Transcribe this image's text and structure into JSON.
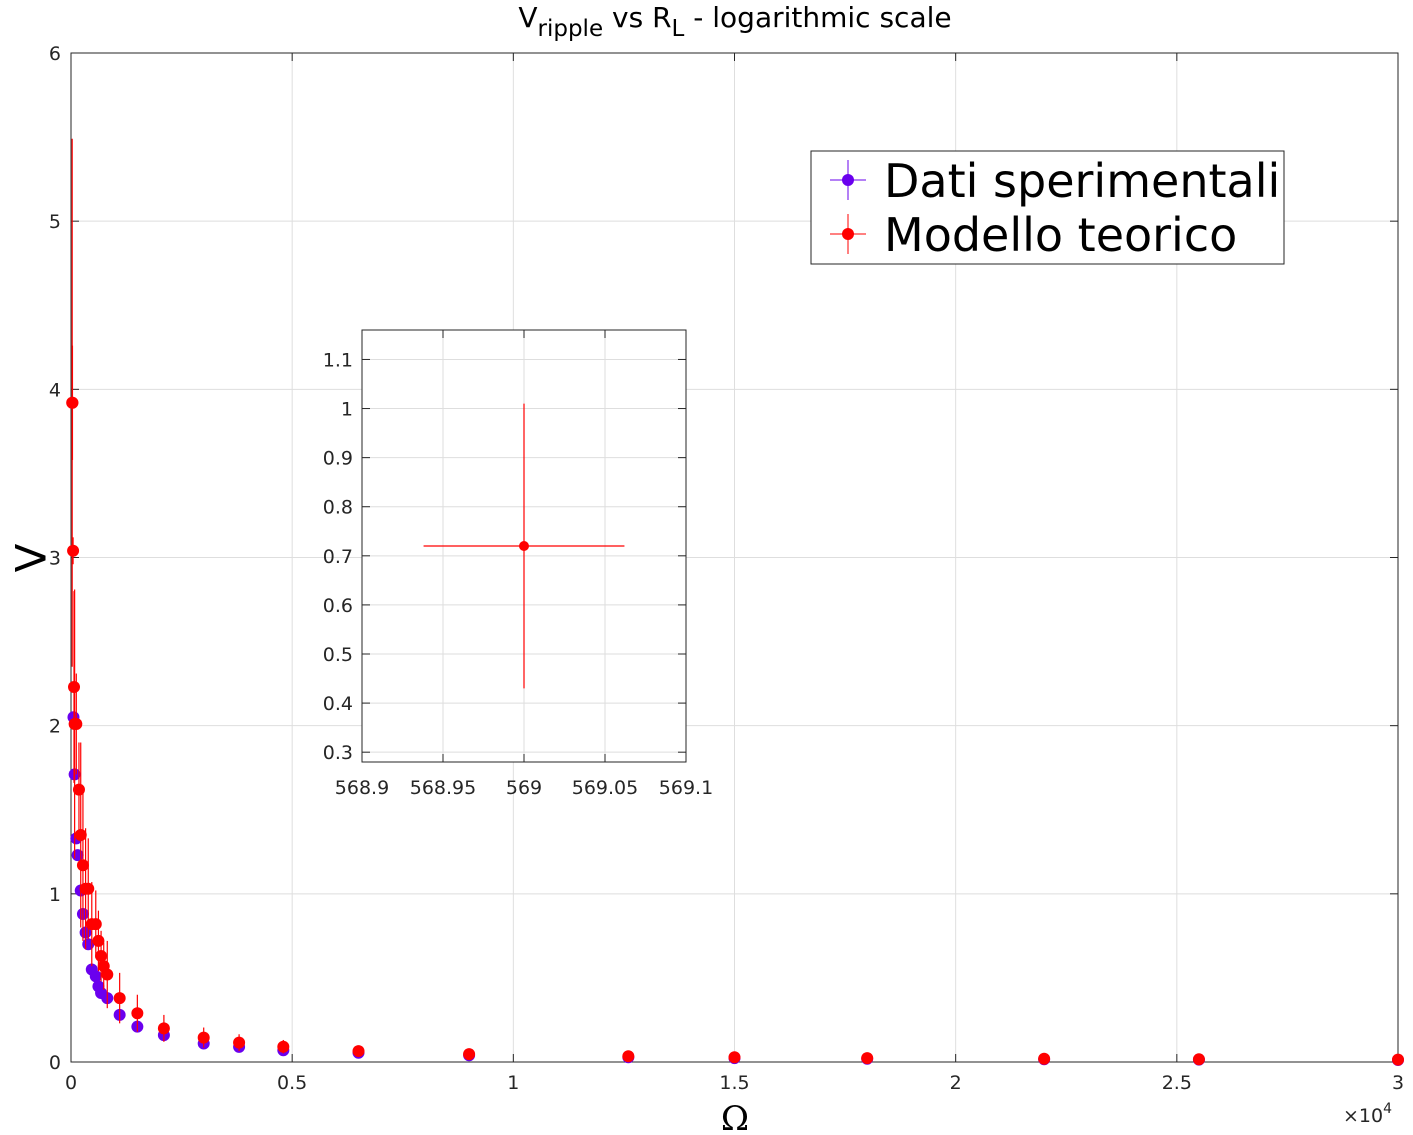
{
  "chart_data": [
    {
      "type": "scatter",
      "title": {
        "main1": "V",
        "sub1": "ripple",
        "main2": " vs R",
        "sub2": "L",
        "main3": " - logarithmic scale"
      },
      "xlabel": "Ω",
      "ylabel": "V",
      "x_exponent": {
        "base": "×10",
        "power": "4"
      },
      "xlim": [
        0,
        30000
      ],
      "ylim": [
        0,
        6
      ],
      "xticks": [
        0,
        5000,
        10000,
        15000,
        20000,
        25000,
        30000
      ],
      "xtick_labels": [
        "0",
        "0.5",
        "1",
        "1.5",
        "2",
        "2.5",
        "3"
      ],
      "yticks": [
        0,
        1,
        2,
        3,
        4,
        5,
        6
      ],
      "ytick_labels": [
        "0",
        "1",
        "2",
        "3",
        "4",
        "5",
        "6"
      ],
      "grid": true,
      "legend": {
        "location": "top-right",
        "entries": [
          "Dati sperimentali",
          "Modello teorico"
        ]
      },
      "colors": {
        "experimental": "#6a00ee",
        "model": "#ff0000"
      },
      "series": [
        {
          "name": "Dati sperimentali",
          "points": [
            {
              "x": 56,
              "y": 2.05,
              "err": 0.03
            },
            {
              "x": 82,
              "y": 1.71,
              "err": 0.03
            },
            {
              "x": 120,
              "y": 1.33,
              "err": 0.02
            },
            {
              "x": 150,
              "y": 1.23,
              "err": 0.02
            },
            {
              "x": 220,
              "y": 1.02,
              "err": 0.02
            },
            {
              "x": 270,
              "y": 0.88,
              "err": 0.02
            },
            {
              "x": 330,
              "y": 0.77,
              "err": 0.02
            },
            {
              "x": 390,
              "y": 0.7,
              "err": 0.02
            },
            {
              "x": 470,
              "y": 0.55,
              "err": 0.02
            },
            {
              "x": 560,
              "y": 0.51,
              "err": 0.02
            },
            {
              "x": 620,
              "y": 0.45,
              "err": 0.02
            },
            {
              "x": 680,
              "y": 0.41,
              "err": 0.02
            },
            {
              "x": 820,
              "y": 0.38,
              "err": 0.02
            },
            {
              "x": 1100,
              "y": 0.28,
              "err": 0.02
            },
            {
              "x": 1500,
              "y": 0.21,
              "err": 0.02
            },
            {
              "x": 2100,
              "y": 0.16,
              "err": 0.02
            },
            {
              "x": 3000,
              "y": 0.11,
              "err": 0.01
            },
            {
              "x": 3800,
              "y": 0.09,
              "err": 0.01
            },
            {
              "x": 4800,
              "y": 0.07,
              "err": 0.01
            },
            {
              "x": 6500,
              "y": 0.055,
              "err": 0.01
            },
            {
              "x": 9000,
              "y": 0.04,
              "err": 0.01
            },
            {
              "x": 12600,
              "y": 0.028,
              "err": 0.01
            },
            {
              "x": 15000,
              "y": 0.023,
              "err": 0.01
            },
            {
              "x": 18000,
              "y": 0.019,
              "err": 0.01
            },
            {
              "x": 22000,
              "y": 0.016,
              "err": 0.01
            },
            {
              "x": 25500,
              "y": 0.014,
              "err": 0.01
            },
            {
              "x": 30000,
              "y": 0.012,
              "err": 0.01
            }
          ]
        },
        {
          "name": "Modello teorico",
          "points": [
            {
              "x": 27,
              "y": 3.92,
              "err": 1.57
            },
            {
              "x": 33,
              "y": 3.92,
              "err": 0.34
            },
            {
              "x": 47,
              "y": 3.04,
              "err": 0.08
            },
            {
              "x": 68,
              "y": 2.23,
              "err": 0.57
            },
            {
              "x": 82,
              "y": 2.01,
              "err": 0.8
            },
            {
              "x": 120,
              "y": 2.01,
              "err": 0.3
            },
            {
              "x": 180,
              "y": 1.62,
              "err": 0.28
            },
            {
              "x": 220,
              "y": 1.35,
              "err": 0.55
            },
            {
              "x": 270,
              "y": 1.17,
              "err": 0.45
            },
            {
              "x": 330,
              "y": 1.03,
              "err": 0.36
            },
            {
              "x": 390,
              "y": 1.03,
              "err": 0.3
            },
            {
              "x": 470,
              "y": 0.82,
              "err": 0.25
            },
            {
              "x": 560,
              "y": 0.82,
              "err": 0.2
            },
            {
              "x": 620,
              "y": 0.72,
              "err": 0.18
            },
            {
              "x": 680,
              "y": 0.63,
              "err": 0.15
            },
            {
              "x": 740,
              "y": 0.57,
              "err": 0.14
            },
            {
              "x": 820,
              "y": 0.52,
              "err": 0.2
            },
            {
              "x": 1100,
              "y": 0.38,
              "err": 0.15
            },
            {
              "x": 1500,
              "y": 0.29,
              "err": 0.11
            },
            {
              "x": 2100,
              "y": 0.2,
              "err": 0.08
            },
            {
              "x": 3000,
              "y": 0.145,
              "err": 0.06
            },
            {
              "x": 3800,
              "y": 0.115,
              "err": 0.05
            },
            {
              "x": 4800,
              "y": 0.091,
              "err": 0.04
            },
            {
              "x": 6500,
              "y": 0.065,
              "err": 0.03
            },
            {
              "x": 9000,
              "y": 0.047,
              "err": 0.02
            },
            {
              "x": 12600,
              "y": 0.034,
              "err": 0.015
            },
            {
              "x": 15000,
              "y": 0.028,
              "err": 0.012
            },
            {
              "x": 18000,
              "y": 0.023,
              "err": 0.01
            },
            {
              "x": 22000,
              "y": 0.019,
              "err": 0.008
            },
            {
              "x": 25500,
              "y": 0.016,
              "err": 0.007
            },
            {
              "x": 30000,
              "y": 0.014,
              "err": 0.006
            }
          ]
        }
      ]
    },
    {
      "type": "scatter",
      "xlim": [
        568.9,
        569.1
      ],
      "ylim": [
        0.28,
        1.16
      ],
      "xticks": [
        568.9,
        568.95,
        569,
        569.05,
        569.1
      ],
      "xtick_labels": [
        "568.9",
        "568.95",
        "569",
        "569.05",
        "569.1"
      ],
      "yticks": [
        0.3,
        0.4,
        0.5,
        0.6,
        0.7,
        0.8,
        0.9,
        1.0,
        1.1
      ],
      "ytick_labels": [
        "0.3",
        "0.4",
        "0.5",
        "0.6",
        "0.7",
        "0.8",
        "0.9",
        "1",
        "1.1"
      ],
      "grid": true,
      "colors": {
        "model": "#ff0000"
      },
      "series": [
        {
          "points": [
            {
              "x": 569,
              "y": 0.72,
              "yerr": 0.29,
              "xerr": 0.062
            }
          ]
        }
      ]
    }
  ]
}
